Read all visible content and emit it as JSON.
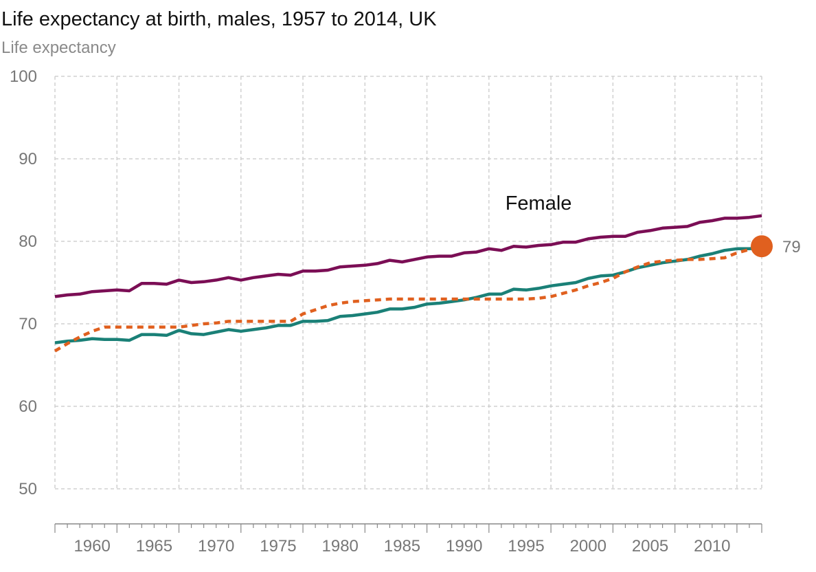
{
  "chart_data": {
    "type": "line",
    "title": "Life expectancy at birth, males, 1957 to 2014, UK",
    "subtitle": "Life expectancy",
    "xlabel": "",
    "ylabel": "",
    "xlim": [
      1957,
      2014
    ],
    "ylim": [
      50,
      100
    ],
    "y_ticks": [
      50,
      60,
      70,
      80,
      90,
      100
    ],
    "x_ticks": [
      1960,
      1965,
      1970,
      1975,
      1980,
      1985,
      1990,
      1995,
      2000,
      2005,
      2010
    ],
    "grid": true,
    "colors": {
      "female": "#7b0e55",
      "male": "#1a8077",
      "male_dashed": "#e0601f",
      "marker": "#e0601f",
      "grid": "#d0d0d0",
      "axis": "#888888",
      "tick_text": "#777777"
    },
    "x": [
      1957,
      1958,
      1959,
      1960,
      1961,
      1962,
      1963,
      1964,
      1965,
      1966,
      1967,
      1968,
      1969,
      1970,
      1971,
      1972,
      1973,
      1974,
      1975,
      1976,
      1977,
      1978,
      1979,
      1980,
      1981,
      1982,
      1983,
      1984,
      1985,
      1986,
      1987,
      1988,
      1989,
      1990,
      1991,
      1992,
      1993,
      1994,
      1995,
      1996,
      1997,
      1998,
      1999,
      2000,
      2001,
      2002,
      2003,
      2004,
      2005,
      2006,
      2007,
      2008,
      2009,
      2010,
      2011,
      2012,
      2013,
      2014
    ],
    "series": [
      {
        "name": "Female",
        "style": "solid",
        "values": [
          73.3,
          73.5,
          73.6,
          73.9,
          74.0,
          74.1,
          74.0,
          74.9,
          74.9,
          74.8,
          75.3,
          75.0,
          75.1,
          75.3,
          75.6,
          75.3,
          75.6,
          75.8,
          76.0,
          75.9,
          76.4,
          76.4,
          76.5,
          76.9,
          77.0,
          77.1,
          77.3,
          77.7,
          77.5,
          77.8,
          78.1,
          78.2,
          78.2,
          78.6,
          78.7,
          79.1,
          78.9,
          79.4,
          79.3,
          79.5,
          79.6,
          79.9,
          79.9,
          80.3,
          80.5,
          80.6,
          80.6,
          81.1,
          81.3,
          81.6,
          81.7,
          81.8,
          82.3,
          82.5,
          82.8,
          82.8,
          82.9,
          83.1
        ]
      },
      {
        "name": "",
        "style": "solid",
        "values": [
          67.7,
          67.9,
          68.0,
          68.2,
          68.1,
          68.1,
          68.0,
          68.7,
          68.7,
          68.6,
          69.2,
          68.8,
          68.7,
          69.0,
          69.3,
          69.1,
          69.3,
          69.5,
          69.8,
          69.8,
          70.3,
          70.3,
          70.4,
          70.9,
          71.0,
          71.2,
          71.4,
          71.8,
          71.8,
          72.0,
          72.4,
          72.5,
          72.7,
          72.9,
          73.2,
          73.6,
          73.6,
          74.2,
          74.1,
          74.3,
          74.6,
          74.8,
          75.0,
          75.5,
          75.8,
          75.9,
          76.3,
          76.8,
          77.1,
          77.4,
          77.6,
          77.8,
          78.2,
          78.5,
          78.9,
          79.1,
          79.1,
          79.2
        ]
      },
      {
        "name": "",
        "style": "dashed",
        "values": [
          66.7,
          67.6,
          68.4,
          69.1,
          69.6,
          69.6,
          69.6,
          69.6,
          69.6,
          69.6,
          69.6,
          69.8,
          70.0,
          70.1,
          70.3,
          70.3,
          70.3,
          70.3,
          70.3,
          70.3,
          71.2,
          71.7,
          72.2,
          72.5,
          72.7,
          72.8,
          72.9,
          73.0,
          73.0,
          73.0,
          73.0,
          73.0,
          73.0,
          73.0,
          73.0,
          73.0,
          73.0,
          73.0,
          73.0,
          73.1,
          73.3,
          73.7,
          74.1,
          74.6,
          75.0,
          75.5,
          76.3,
          76.9,
          77.4,
          77.6,
          77.7,
          77.8,
          77.8,
          77.9,
          78.0,
          78.6,
          79.0,
          79.4
        ]
      }
    ],
    "series_labels": [
      {
        "series": 0,
        "text": "Female",
        "x": 1996,
        "y": 83.0
      }
    ],
    "end_marker": {
      "series": 2,
      "x": 2014,
      "y": 79.4,
      "label": "79"
    }
  }
}
